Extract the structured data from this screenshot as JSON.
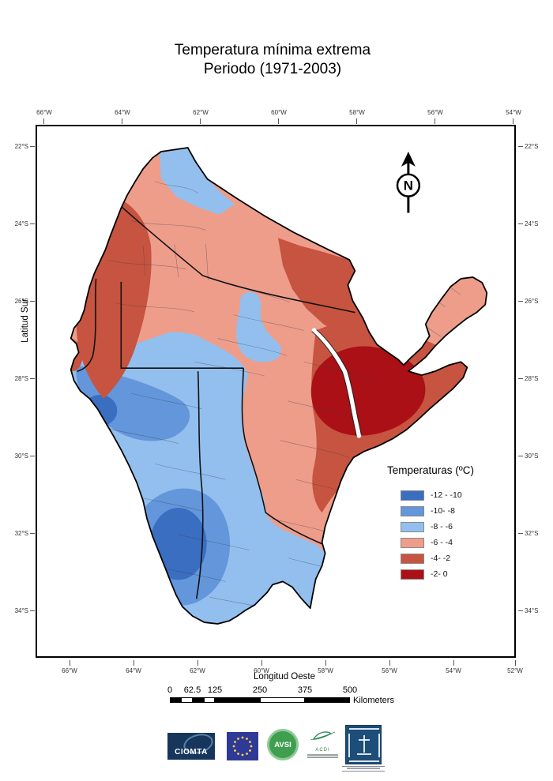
{
  "title": {
    "line1": "Temperatura mínima extrema",
    "line2": "Periodo (1971-2003)"
  },
  "map": {
    "axes": {
      "top_ticks": [
        "66°W",
        "64°W",
        "62°W",
        "60°W",
        "58°W",
        "56°W",
        "54°W"
      ],
      "bottom_ticks": [
        "66°W",
        "64°W",
        "62°W",
        "60°W",
        "58°W",
        "56°W",
        "54°W",
        "52°W"
      ],
      "left_ticks": [
        "22°S",
        "24°S",
        "26°S",
        "28°S",
        "30°S",
        "32°S",
        "34°S"
      ],
      "right_ticks": [
        "22°S",
        "24°S",
        "26°S",
        "28°S",
        "30°S",
        "32°S",
        "34°S"
      ],
      "x_label": "Longitud Oeste",
      "y_label": "Latitud Sur"
    },
    "north_arrow_letter": "N"
  },
  "legend": {
    "title": "Temperaturas (ºC)",
    "items": [
      {
        "label": "-12 - -10",
        "color": "#3a6ec1"
      },
      {
        "label": "-10- -8",
        "color": "#6496db"
      },
      {
        "label": "-8 - -6",
        "color": "#93bfef"
      },
      {
        "label": "-6 - -4",
        "color": "#ee9d8b"
      },
      {
        "label": "-4- -2",
        "color": "#c75440"
      },
      {
        "label": "-2- 0",
        "color": "#aa1016"
      }
    ]
  },
  "scalebar": {
    "labels": [
      "0",
      "62.5",
      "125",
      "250",
      "375",
      "500"
    ],
    "unit": "Kilometers"
  },
  "logos": {
    "ciomta": "CIOMTA",
    "avsi": "AVSI",
    "acdi": "ACDI"
  },
  "colors": {
    "map_outline": "#000000",
    "class_dark_blue": "#3a6ec1",
    "class_mid_blue": "#6496db",
    "class_light_blue": "#93bfef",
    "class_salmon": "#ee9d8b",
    "class_mid_red": "#c75440",
    "class_dark_red": "#aa1016"
  }
}
